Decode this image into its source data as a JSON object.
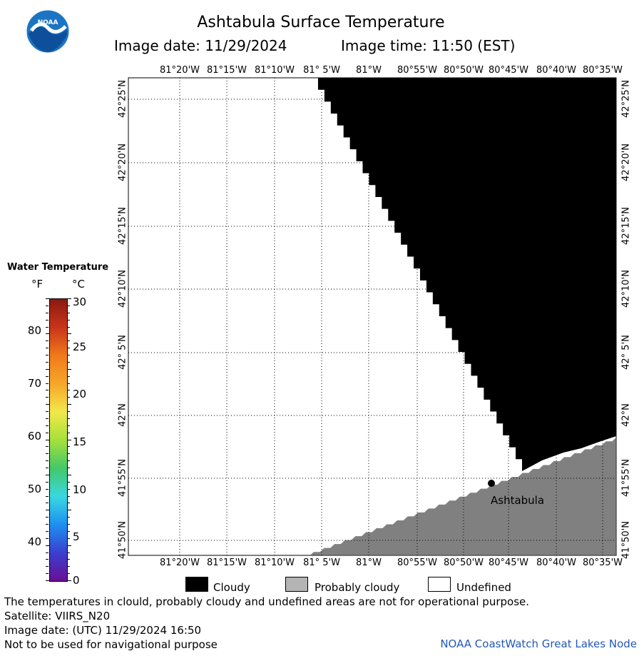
{
  "header": {
    "title": "Ashtabula Surface Temperature",
    "image_date_label": "Image date: 11/29/2024",
    "image_time_label": "Image time: 11:50 (EST)",
    "logo_text": "NOAA"
  },
  "map": {
    "lon_labels": [
      "81°20'W",
      "81°15'W",
      "81°10'W",
      "81° 5'W",
      "81°W",
      "80°55'W",
      "80°50'W",
      "80°45'W",
      "80°40'W",
      "80°35'W"
    ],
    "lat_labels": [
      "42°25'N",
      "42°20'N",
      "42°15'N",
      "42°10'N",
      "42° 5'N",
      "42°N",
      "41°55'N",
      "41°50'N"
    ],
    "place_label": "Ashtabula",
    "colors": {
      "cloudy": "#000000",
      "probably_cloudy": "#808080",
      "undefined": "#ffffff",
      "grid": "#000000"
    }
  },
  "legend": {
    "title": "Water Temperature",
    "unit_f": "°F",
    "unit_c": "°C",
    "f_ticks": [
      "80",
      "70",
      "60",
      "50",
      "40"
    ],
    "c_ticks": [
      "30",
      "25",
      "20",
      "15",
      "10",
      "5",
      "0"
    ],
    "gradient": [
      "#6a0f93",
      "#3a3fd0",
      "#1e8ff0",
      "#39d8e0",
      "#43c86a",
      "#a6e03a",
      "#f2e84a",
      "#f7a62a",
      "#f07a1a",
      "#c8341a",
      "#8a1a10"
    ]
  },
  "key": {
    "items": [
      {
        "label": "Cloudy",
        "color": "#000000"
      },
      {
        "label": "Probably cloudy",
        "color": "#b4b4b4"
      },
      {
        "label": "Undefined",
        "color": "#ffffff"
      }
    ]
  },
  "footer": {
    "line1": "The temperatures in clould, probably cloudy and undefined areas are not for operational purpose.",
    "line2": "Satellite: VIIRS_N20",
    "line3": "Image date: (UTC) 11/29/2024  16:50",
    "line4": "Not to be used for navigational purpose",
    "credit": "NOAA CoastWatch Great Lakes Node"
  }
}
